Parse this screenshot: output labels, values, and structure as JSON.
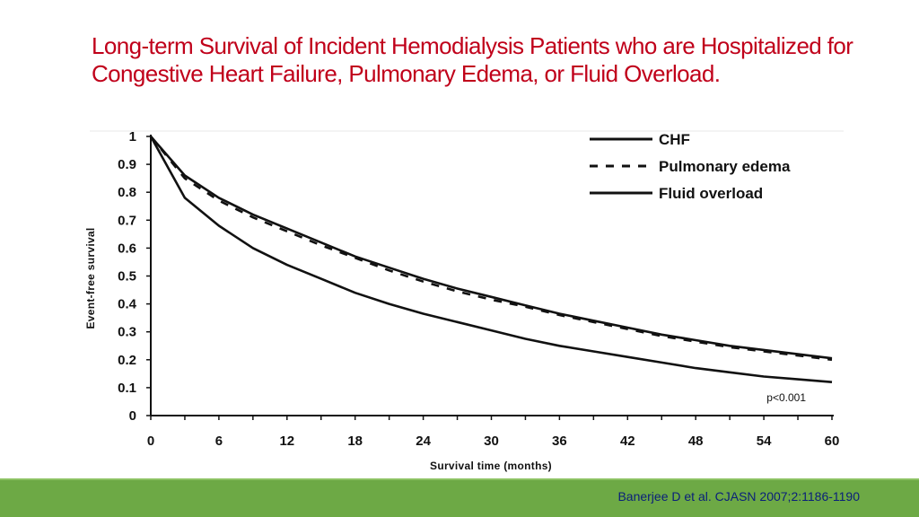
{
  "slide": {
    "title": "Long-term Survival of Incident Hemodialysis Patients who are Hospitalized for Congestive Heart Failure, Pulmonary Edema, or Fluid Overload.",
    "citation": "Banerjee D et al. CJASN 2007;2:1186-1190",
    "footer_color": "#6da945",
    "title_color": "#c0001a"
  },
  "chart_data": {
    "type": "line",
    "xlabel": "Survival time (months)",
    "ylabel": "Event-free survival",
    "xlim": [
      0,
      60
    ],
    "ylim": [
      0,
      1
    ],
    "xticks": [
      "0",
      "6",
      "12",
      "18",
      "24",
      "30",
      "36",
      "42",
      "48",
      "54",
      "60"
    ],
    "yticks": [
      "0",
      "0.1",
      "0.2",
      "0.3",
      "0.4",
      "0.5",
      "0.6",
      "0.7",
      "0.8",
      "0.9",
      "1"
    ],
    "grid": false,
    "legend_position": "top-right",
    "annotation": "p<0.001",
    "series": [
      {
        "name": "CHF",
        "style": "solid",
        "x": [
          0,
          3,
          6,
          9,
          12,
          15,
          18,
          21,
          24,
          27,
          30,
          33,
          36,
          39,
          42,
          45,
          48,
          51,
          54,
          57,
          60
        ],
        "y": [
          1.0,
          0.86,
          0.78,
          0.72,
          0.67,
          0.62,
          0.57,
          0.53,
          0.49,
          0.455,
          0.425,
          0.395,
          0.365,
          0.34,
          0.315,
          0.29,
          0.27,
          0.25,
          0.235,
          0.22,
          0.205
        ]
      },
      {
        "name": "Pulmonary edema",
        "style": "dashed",
        "x": [
          0,
          3,
          6,
          9,
          12,
          15,
          18,
          21,
          24,
          27,
          30,
          33,
          36,
          39,
          42,
          45,
          48,
          51,
          54,
          57,
          60
        ],
        "y": [
          1.0,
          0.85,
          0.77,
          0.71,
          0.66,
          0.61,
          0.565,
          0.52,
          0.48,
          0.445,
          0.415,
          0.39,
          0.36,
          0.335,
          0.31,
          0.285,
          0.265,
          0.245,
          0.23,
          0.215,
          0.2
        ]
      },
      {
        "name": "Fluid overload",
        "style": "solid",
        "x": [
          0,
          3,
          6,
          9,
          12,
          15,
          18,
          21,
          24,
          27,
          30,
          33,
          36,
          39,
          42,
          45,
          48,
          51,
          54,
          57,
          60
        ],
        "y": [
          1.0,
          0.78,
          0.68,
          0.6,
          0.54,
          0.49,
          0.44,
          0.4,
          0.365,
          0.335,
          0.305,
          0.275,
          0.25,
          0.23,
          0.21,
          0.19,
          0.17,
          0.155,
          0.14,
          0.13,
          0.12
        ]
      }
    ]
  }
}
